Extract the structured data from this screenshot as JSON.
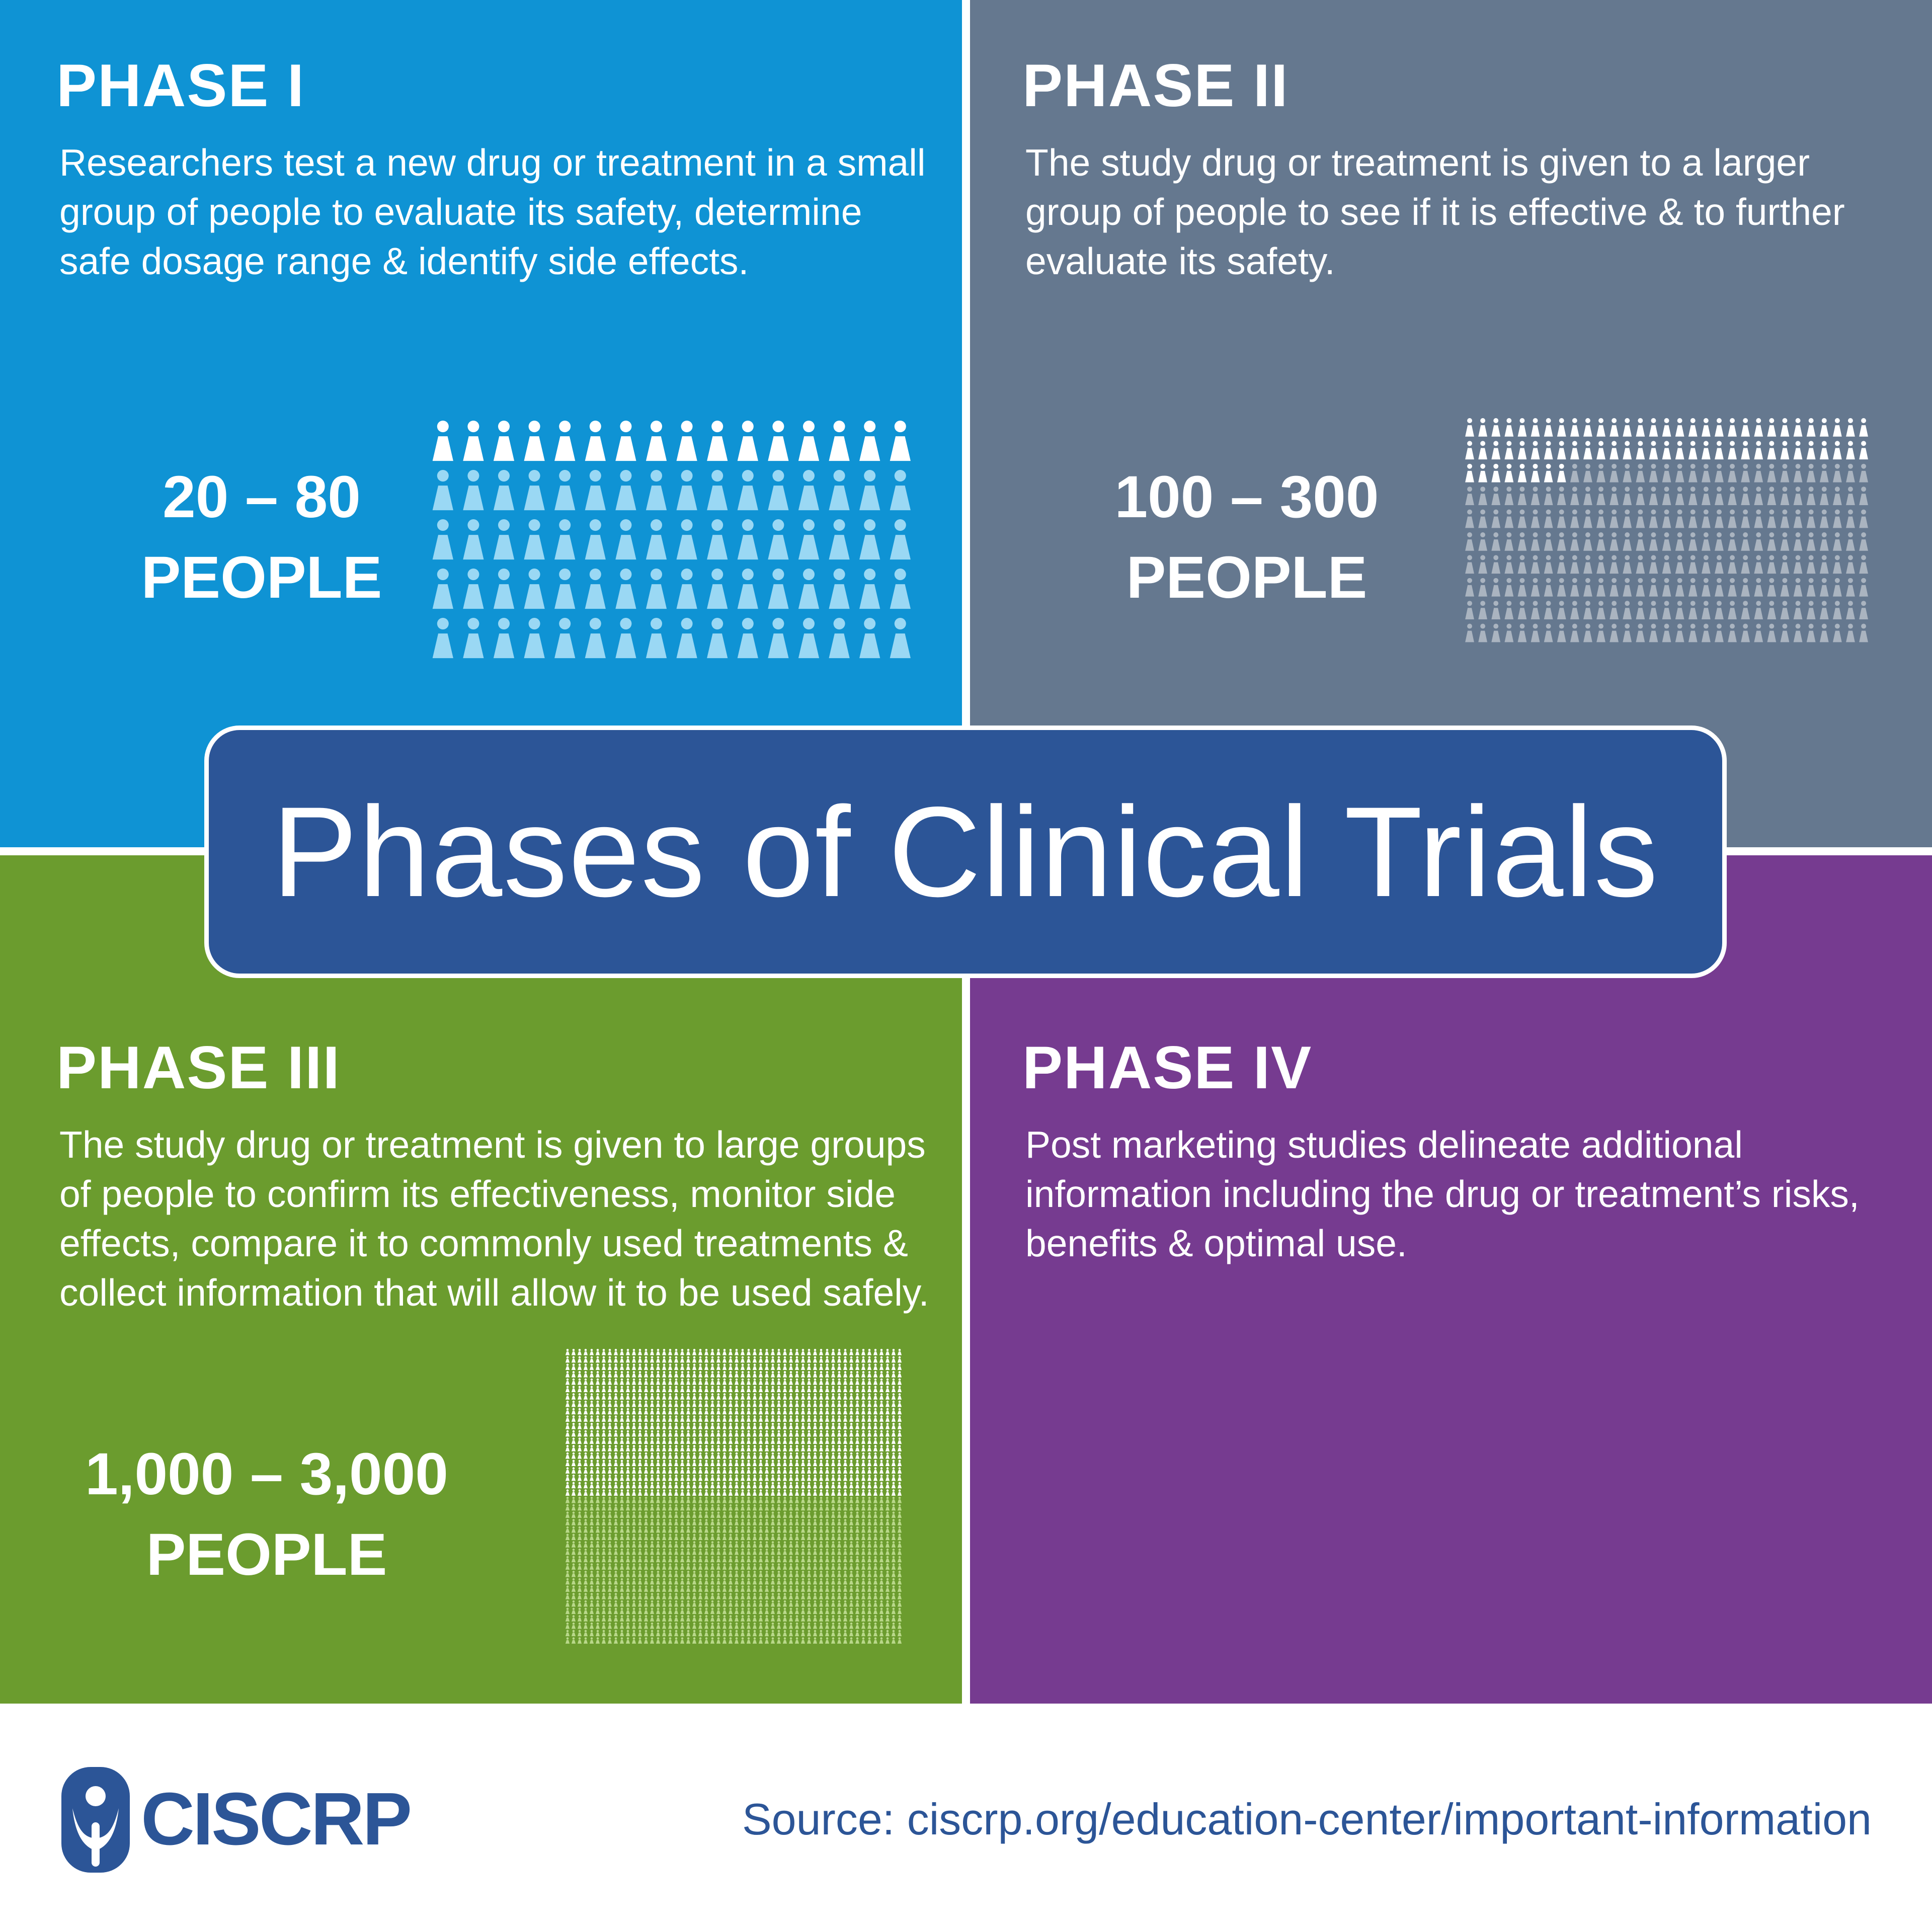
{
  "title": "Phases of Clinical Trials",
  "phases": [
    {
      "title": "PHASE I",
      "description": "Researchers test a new drug or treatment in a small group of people to evaluate its safety, determine safe dosage range & identify side effects.",
      "count_line1": "20 – 80",
      "count_line2": "PEOPLE",
      "color": "#0f93d4"
    },
    {
      "title": "PHASE II",
      "description": "The study drug or treatment is given to a larger group of people to see if it is effective & to further evaluate its safety.",
      "count_line1": "100 – 300",
      "count_line2": "PEOPLE",
      "color": "#65788f"
    },
    {
      "title": "PHASE III",
      "description": "The study drug or treatment is given to large groups of people to confirm its effectiveness, monitor side effects, compare it to commonly used treatments & collect information that will allow it to be used safely.",
      "count_line1": "1,000 – 3,000",
      "count_line2": "PEOPLE",
      "color": "#6b9c2e"
    },
    {
      "title": "PHASE IV",
      "description": "Post marketing studies delineate additional information including the drug or treatment’s risks, benefits & optimal use.",
      "color": "#763b90"
    }
  ],
  "footer": {
    "logo_text": "CISCRP",
    "source": "Source:  ciscrp.org/education-center/important-information"
  },
  "icons": {
    "people": "person-icon",
    "logo": "ciscrp-logo-icon"
  },
  "colors": {
    "banner": "#2c5597",
    "white": "#ffffff",
    "phase1_light": "#9ad8f4",
    "phase2_light": "#aab4c0",
    "phase3_light": "#b9d88a"
  }
}
